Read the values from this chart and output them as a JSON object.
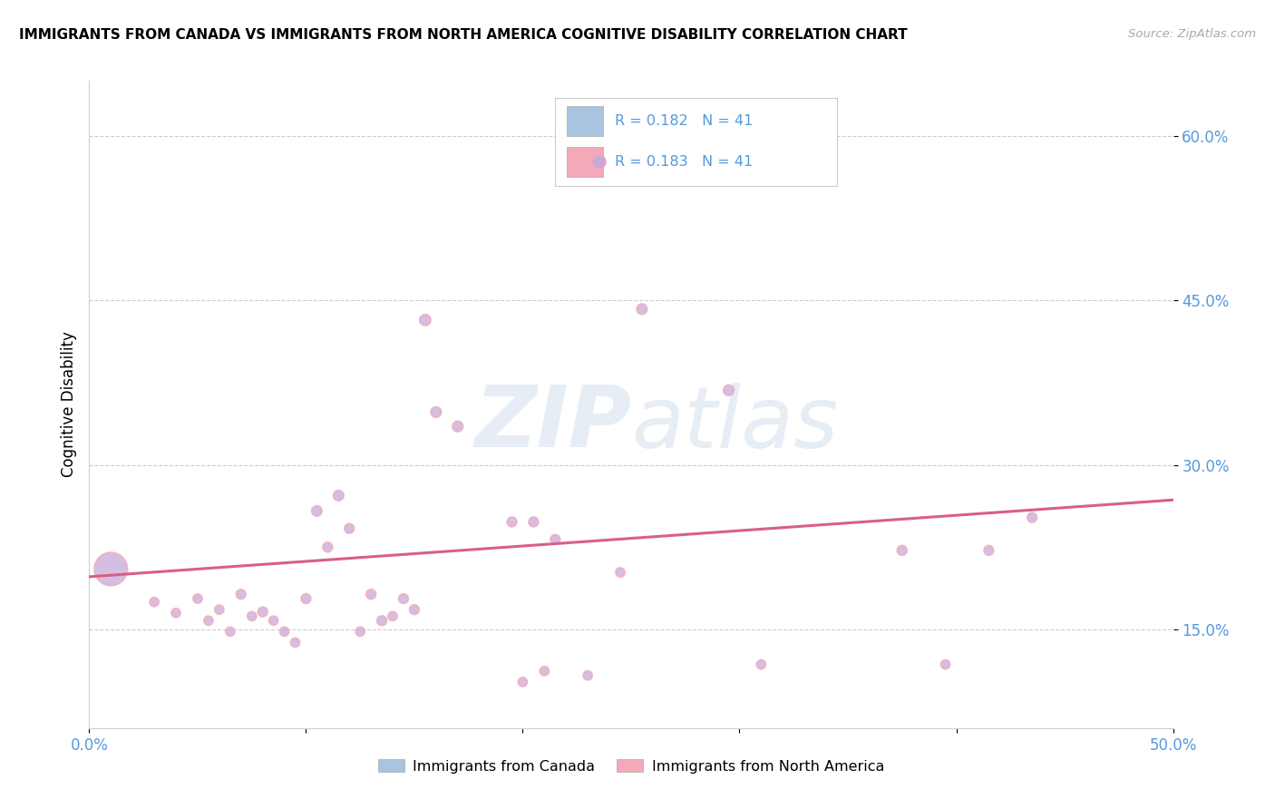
{
  "title": "IMMIGRANTS FROM CANADA VS IMMIGRANTS FROM NORTH AMERICA COGNITIVE DISABILITY CORRELATION CHART",
  "source": "Source: ZipAtlas.com",
  "ylabel": "Cognitive Disability",
  "xlim": [
    0.0,
    0.5
  ],
  "ylim": [
    0.06,
    0.65
  ],
  "yticks": [
    0.15,
    0.3,
    0.45,
    0.6
  ],
  "ytick_labels": [
    "15.0%",
    "30.0%",
    "45.0%",
    "60.0%"
  ],
  "xtick_labels": [
    "0.0%",
    "",
    "",
    "",
    "",
    "50.0%"
  ],
  "legend_r1": "0.182",
  "legend_n1": "41",
  "legend_r2": "0.183",
  "legend_n2": "41",
  "legend_label1": "Immigrants from Canada",
  "legend_label2": "Immigrants from North America",
  "watermark_zip": "ZIP",
  "watermark_atlas": "atlas",
  "color_canada": "#a8c4e0",
  "color_north_america": "#f4a8b8",
  "color_scatter": "#c8a8d8",
  "color_trendline": "#d96080",
  "color_blue_text": "#5599dd",
  "color_grid": "#cccccc",
  "scatter_x": [
    0.01,
    0.03,
    0.04,
    0.05,
    0.055,
    0.06,
    0.065,
    0.07,
    0.075,
    0.08,
    0.085,
    0.09,
    0.095,
    0.1,
    0.105,
    0.11,
    0.115,
    0.12,
    0.125,
    0.13,
    0.135,
    0.14,
    0.145,
    0.15,
    0.155,
    0.16,
    0.17,
    0.195,
    0.2,
    0.205,
    0.21,
    0.215,
    0.23,
    0.245,
    0.255,
    0.295,
    0.31,
    0.375,
    0.395,
    0.415,
    0.435
  ],
  "scatter_y": [
    0.205,
    0.175,
    0.165,
    0.178,
    0.158,
    0.168,
    0.148,
    0.182,
    0.162,
    0.166,
    0.158,
    0.148,
    0.138,
    0.178,
    0.258,
    0.225,
    0.272,
    0.242,
    0.148,
    0.182,
    0.158,
    0.162,
    0.178,
    0.168,
    0.432,
    0.348,
    0.335,
    0.248,
    0.102,
    0.248,
    0.112,
    0.232,
    0.108,
    0.202,
    0.442,
    0.368,
    0.118,
    0.222,
    0.118,
    0.222,
    0.252
  ],
  "scatter_size": [
    700,
    55,
    55,
    55,
    55,
    55,
    55,
    60,
    55,
    62,
    55,
    55,
    55,
    62,
    70,
    62,
    70,
    62,
    55,
    62,
    62,
    55,
    62,
    62,
    80,
    72,
    72,
    62,
    55,
    62,
    55,
    62,
    55,
    55,
    72,
    72,
    55,
    62,
    55,
    62,
    62
  ],
  "trendline_x": [
    0.0,
    0.5
  ],
  "trendline_y_start": 0.198,
  "trendline_y_end": 0.268
}
